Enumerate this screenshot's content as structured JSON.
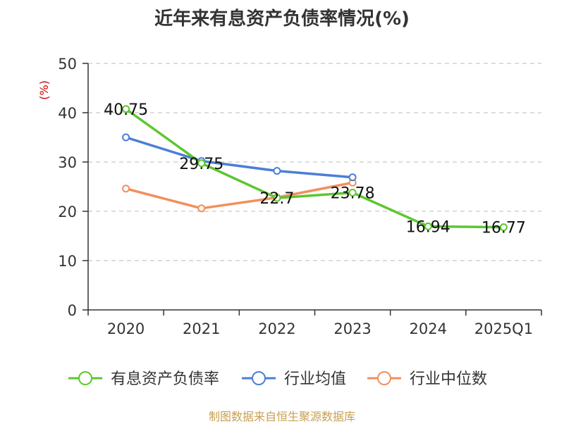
{
  "page": {
    "source_note": "制图数据来自恒生聚源数据库"
  },
  "chart_data": {
    "type": "line",
    "title": "近年来有息资产负债率情况(%)",
    "ylabel": "(%)",
    "xlabel": "",
    "categories": [
      "2020",
      "2021",
      "2022",
      "2023",
      "2024",
      "2025Q1"
    ],
    "ylim": [
      0,
      50
    ],
    "yticks": [
      0,
      10,
      20,
      30,
      40,
      50
    ],
    "grid": true,
    "legend_position": "bottom",
    "series": [
      {
        "name": "有息资产负债率",
        "color": "#5cc72e",
        "values": [
          40.75,
          29.75,
          22.7,
          23.78,
          16.94,
          16.77
        ],
        "labels": [
          "40.75",
          "29.75",
          "22.7",
          "23.78",
          "16.94",
          "16.77"
        ]
      },
      {
        "name": "行业均值",
        "color": "#4a7fd6",
        "values": [
          35.0,
          30.2,
          28.2,
          26.9,
          null,
          null
        ]
      },
      {
        "name": "行业中位数",
        "color": "#f28f5c",
        "values": [
          24.6,
          20.6,
          22.8,
          25.8,
          null,
          null
        ]
      }
    ]
  }
}
